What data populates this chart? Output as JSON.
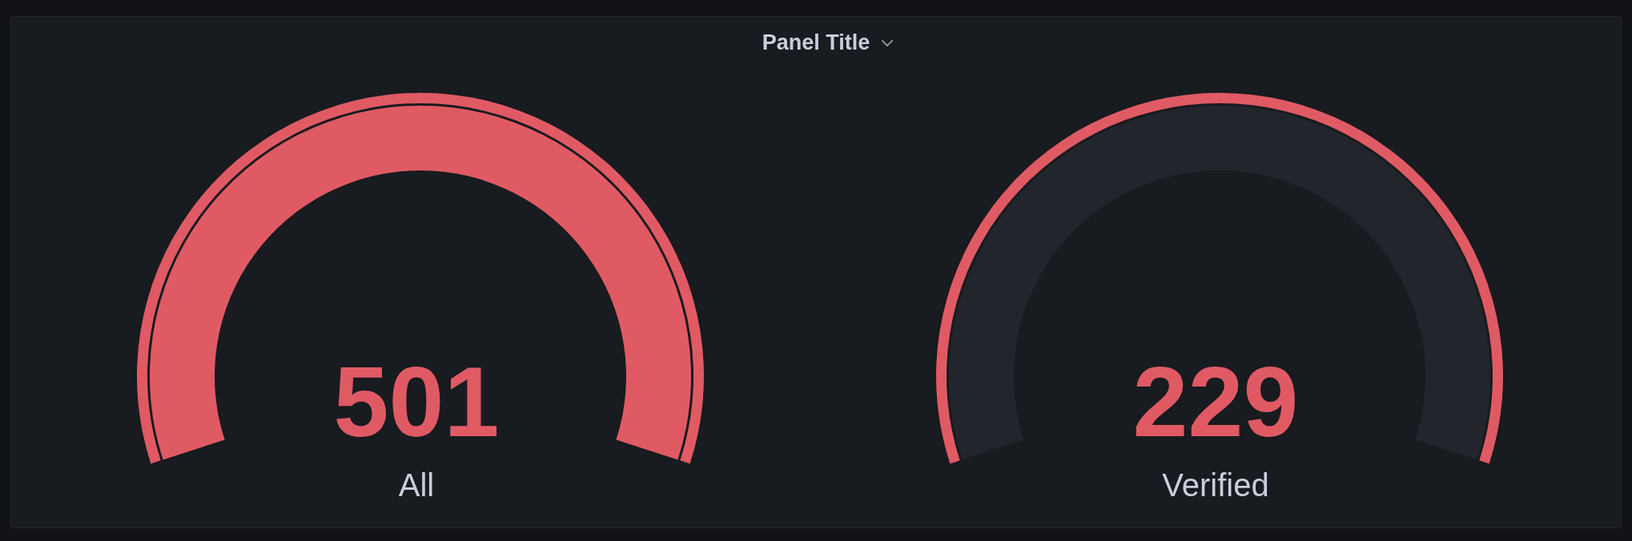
{
  "chart_data": {
    "type": "other",
    "title": "Panel Title",
    "categories": [
      "All",
      "Verified"
    ],
    "values": [
      501,
      229
    ],
    "colors": [
      "#e05a64",
      "#e05a64"
    ],
    "data_labels": true
  }
}
